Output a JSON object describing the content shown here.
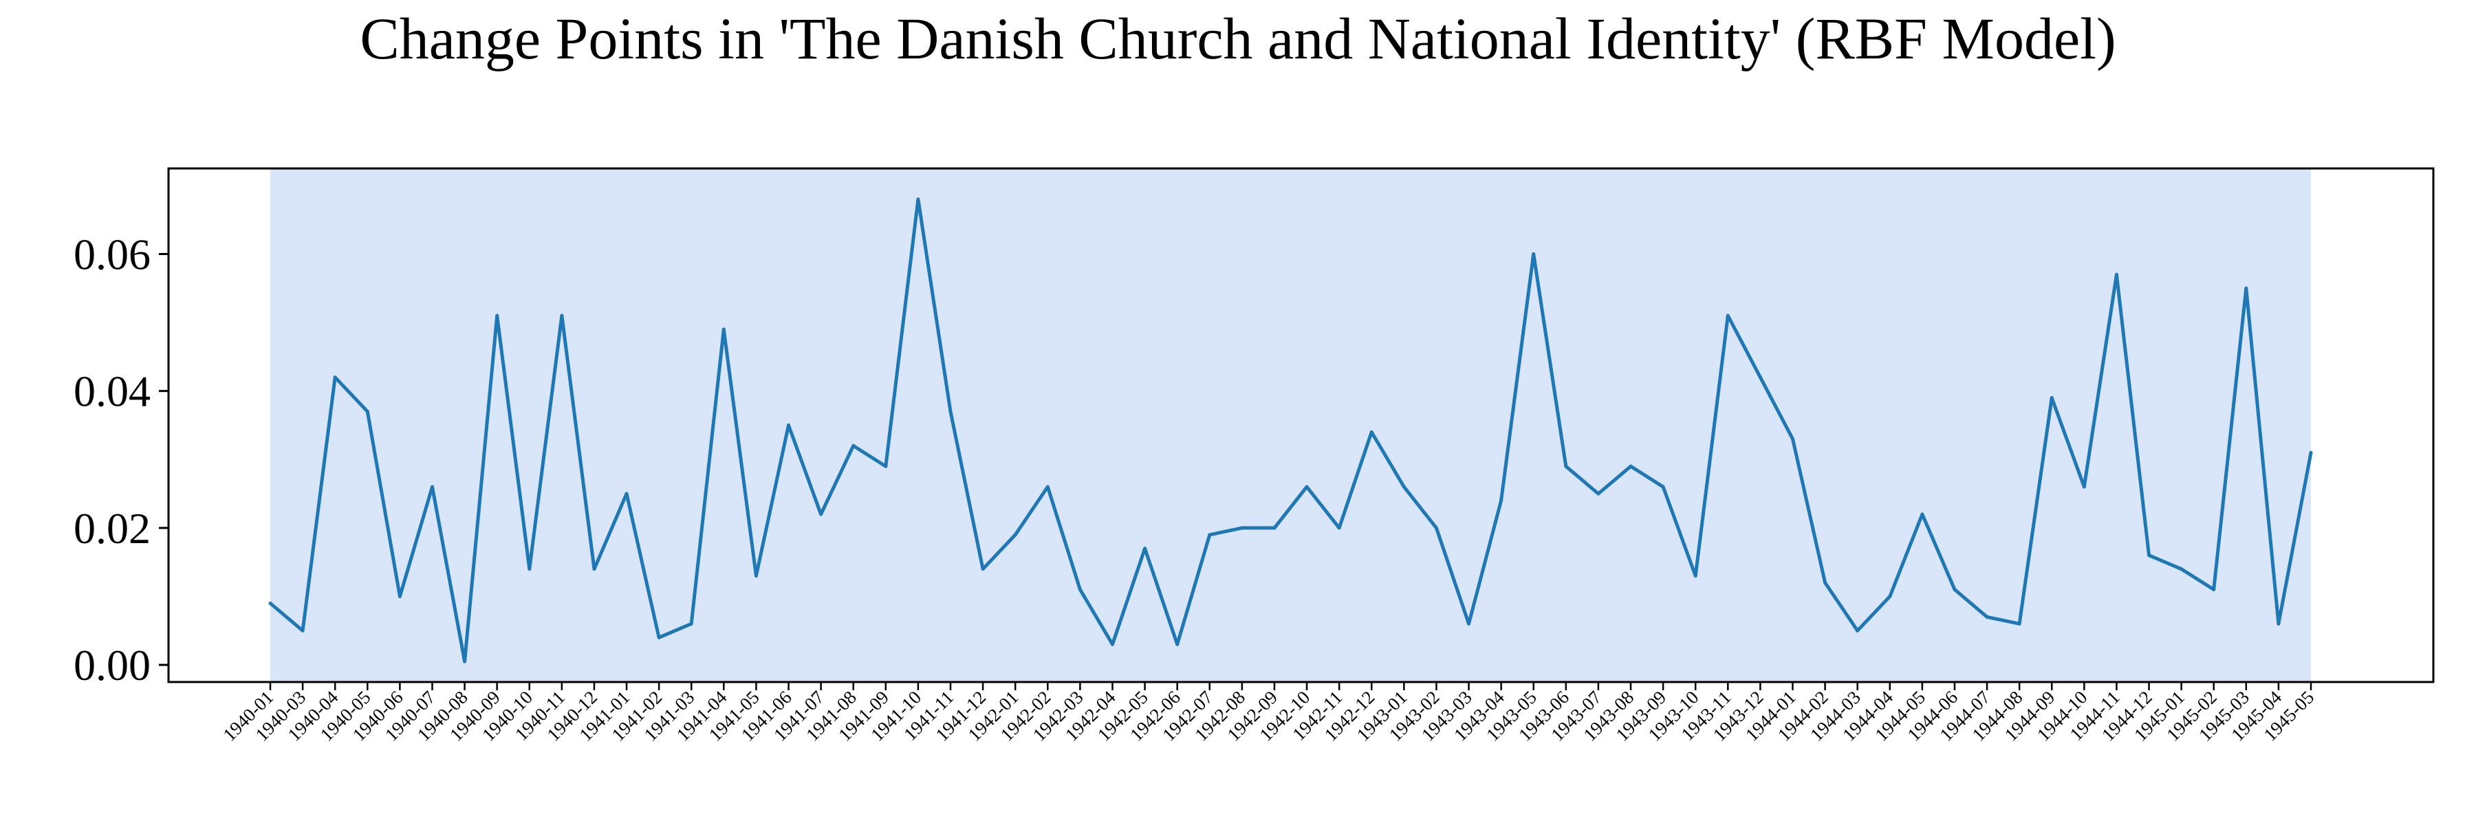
{
  "chart_data": {
    "type": "line",
    "title": "Change Points in 'The Danish Church and National Identity' (RBF Model)",
    "xlabel": "",
    "ylabel": "",
    "ylim": [
      -0.0025,
      0.0725
    ],
    "yticks": [
      "0.00",
      "0.02",
      "0.04",
      "0.06"
    ],
    "grid": false,
    "legend": "none",
    "colors": {
      "line": "#1f77b4",
      "highlight": "#d9e6fa",
      "axes": "#000000",
      "background": "#ffffff"
    },
    "highlight_region": {
      "from": "1940-01",
      "to": "1945-05"
    },
    "categories": [
      "1940-01",
      "1940-03",
      "1940-04",
      "1940-05",
      "1940-06",
      "1940-07",
      "1940-08",
      "1940-09",
      "1940-10",
      "1940-11",
      "1940-12",
      "1941-01",
      "1941-02",
      "1941-03",
      "1941-04",
      "1941-05",
      "1941-06",
      "1941-07",
      "1941-08",
      "1941-09",
      "1941-10",
      "1941-11",
      "1941-12",
      "1942-01",
      "1942-02",
      "1942-03",
      "1942-04",
      "1942-05",
      "1942-06",
      "1942-07",
      "1942-08",
      "1942-09",
      "1942-10",
      "1942-11",
      "1942-12",
      "1943-01",
      "1943-02",
      "1943-03",
      "1943-04",
      "1943-05",
      "1943-06",
      "1943-07",
      "1943-08",
      "1943-09",
      "1943-10",
      "1943-11",
      "1943-12",
      "1944-01",
      "1944-02",
      "1944-03",
      "1944-04",
      "1944-05",
      "1944-06",
      "1944-07",
      "1944-08",
      "1944-09",
      "1944-10",
      "1944-11",
      "1944-12",
      "1945-01",
      "1945-02",
      "1945-03",
      "1945-04",
      "1945-05"
    ],
    "values": [
      0.009,
      0.005,
      0.042,
      0.037,
      0.01,
      0.026,
      0.0005,
      0.051,
      0.014,
      0.051,
      0.014,
      0.025,
      0.004,
      0.006,
      0.049,
      0.013,
      0.035,
      0.022,
      0.032,
      0.029,
      0.068,
      0.037,
      0.014,
      0.019,
      0.026,
      0.011,
      0.003,
      0.017,
      0.003,
      0.019,
      0.02,
      0.02,
      0.026,
      0.02,
      0.034,
      0.026,
      0.02,
      0.006,
      0.024,
      0.06,
      0.029,
      0.025,
      0.029,
      0.026,
      0.013,
      0.051,
      0.042,
      0.033,
      0.012,
      0.005,
      0.01,
      0.022,
      0.011,
      0.007,
      0.006,
      0.039,
      0.026,
      0.057,
      0.016,
      0.014,
      0.011,
      0.055,
      0.006,
      0.031
    ]
  }
}
